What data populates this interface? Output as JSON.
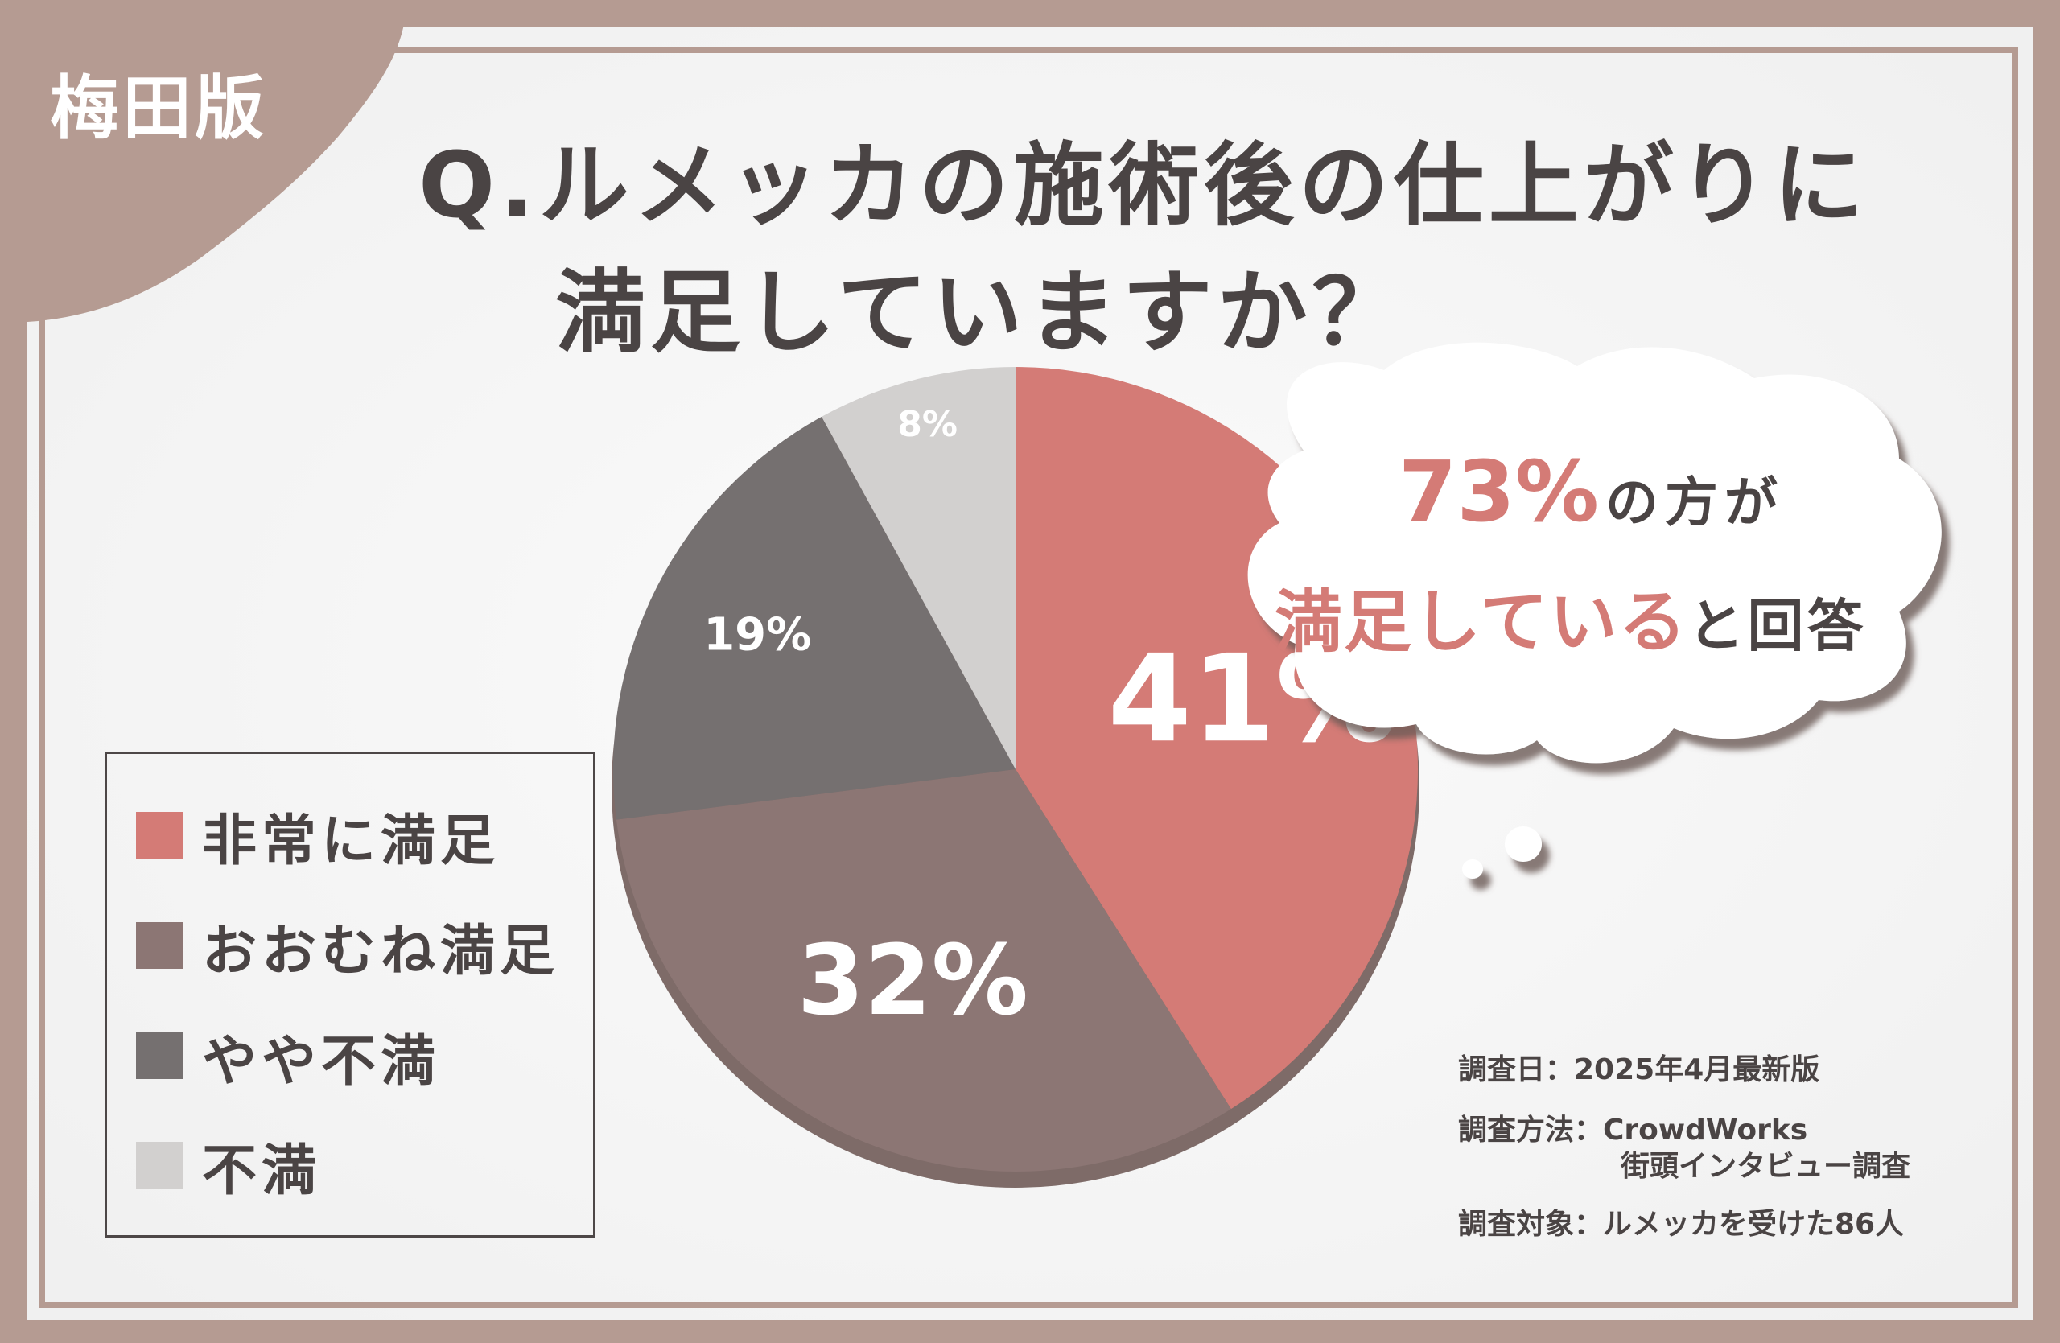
{
  "badge": "梅田版",
  "title": {
    "line1": "Q.ルメッカの施術後の仕上がりに",
    "line2": "満足していますか？"
  },
  "callout": {
    "highlight_percent": "73%",
    "line1_rest": "の方が",
    "line2_highlight": "満足している",
    "line2_rest": "と回答"
  },
  "notes": {
    "date": "調査日：2025年4月最新版",
    "method_label": "調査方法：CrowdWorks",
    "method_detail": "街頭インタビュー調査",
    "target": "調査対象：ルメッカを受けた86人"
  },
  "colors": {
    "very_satisfied": "#d47b76",
    "mostly_satisfied": "#8c7674",
    "somewhat_unsatisfied": "#757070",
    "unsatisfied": "#d2d0cf",
    "frame": "#b59b92",
    "text": "#4a4444"
  },
  "chart_data": {
    "type": "pie",
    "slices": [
      {
        "label": "非常に満足",
        "value": 41,
        "display": "41%",
        "color": "#d47b76"
      },
      {
        "label": "おおむね満足",
        "value": 32,
        "display": "32%",
        "color": "#8c7674"
      },
      {
        "label": "やや不満",
        "value": 19,
        "display": "19%",
        "color": "#757070"
      },
      {
        "label": "不満",
        "value": 8,
        "display": "8%",
        "color": "#d2d0cf"
      }
    ],
    "legend_placement": "left"
  }
}
